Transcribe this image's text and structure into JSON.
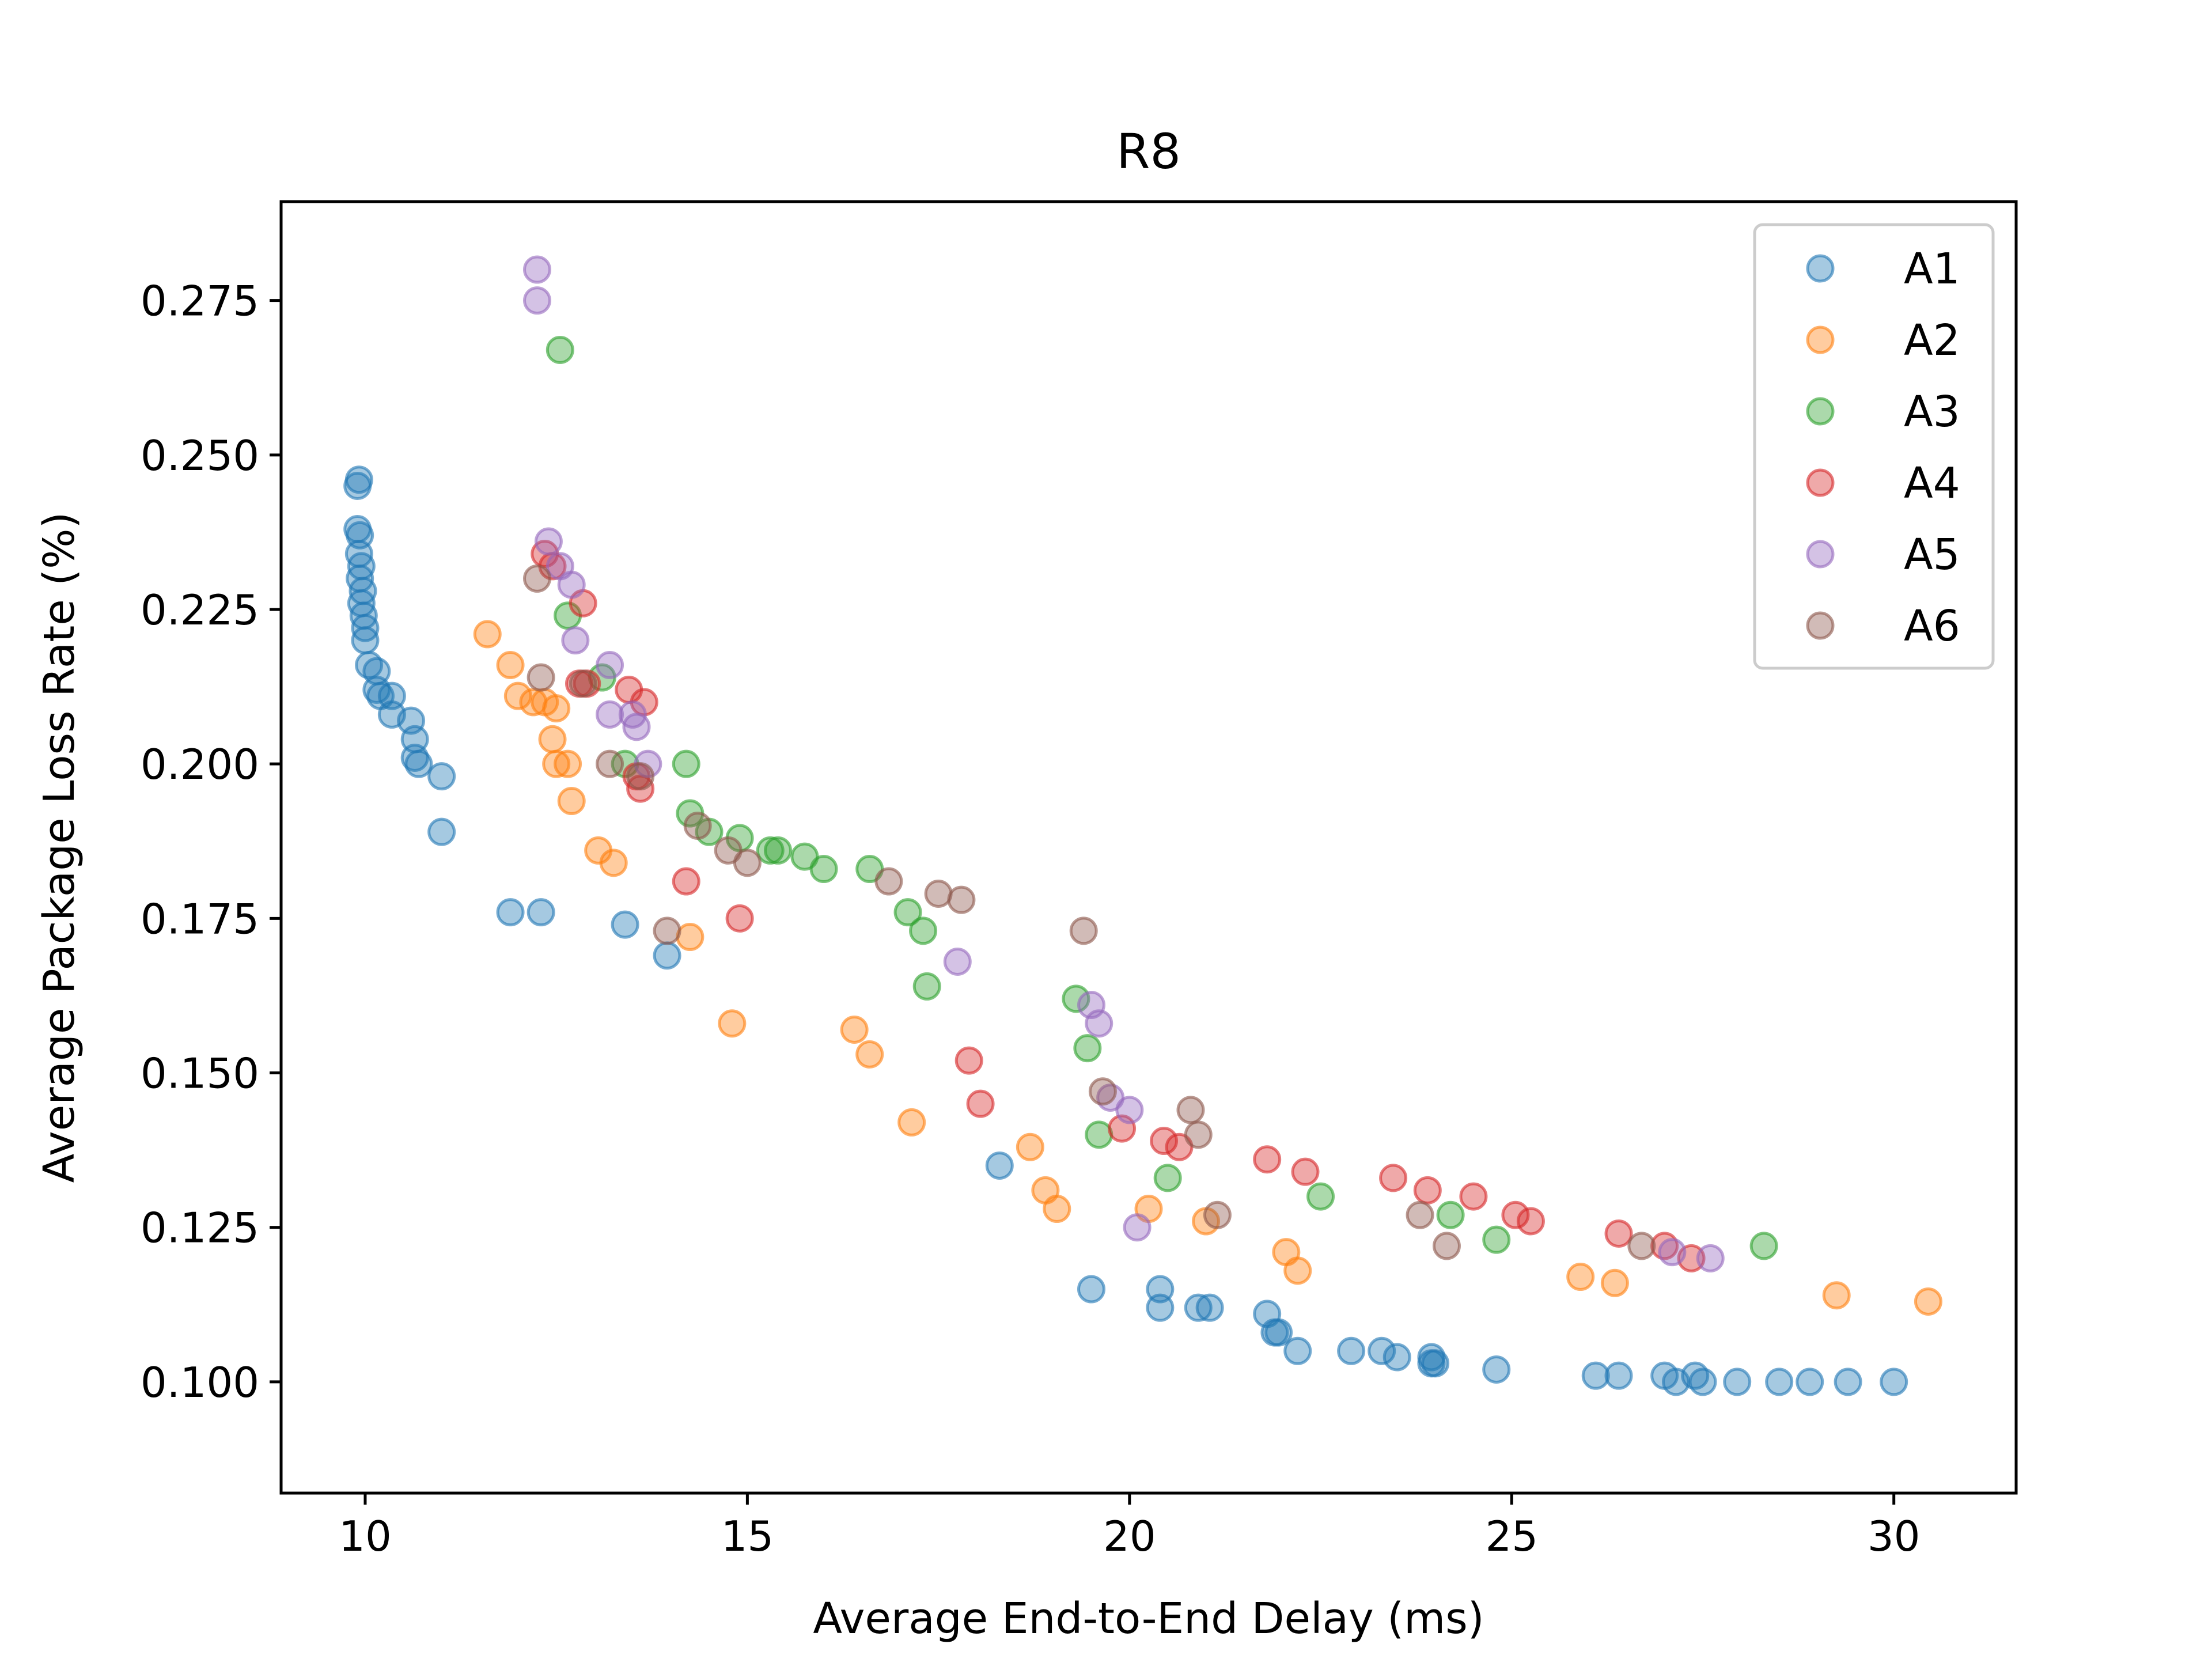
{
  "chart_data": {
    "type": "scatter",
    "title": "R8",
    "xlabel": "Average End-to-End Delay (ms)",
    "ylabel": "Average Package Loss Rate (%)",
    "xlim": [
      8.9,
      31.6
    ],
    "ylim": [
      0.082,
      0.291
    ],
    "xticks": [
      10,
      15,
      20,
      25,
      30
    ],
    "yticks": [
      0.1,
      0.125,
      0.15,
      0.175,
      0.2,
      0.225,
      0.25,
      0.275
    ],
    "xtick_labels": [
      "10",
      "15",
      "20",
      "25",
      "30"
    ],
    "ytick_labels": [
      "0.100",
      "0.125",
      "0.150",
      "0.175",
      "0.200",
      "0.225",
      "0.250",
      "0.275"
    ],
    "grid": false,
    "legend_position": "top-right",
    "series": [
      {
        "name": "A1",
        "color": "#1f77b4",
        "points": [
          [
            9.9,
            0.245
          ],
          [
            9.92,
            0.246
          ],
          [
            9.9,
            0.238
          ],
          [
            9.93,
            0.237
          ],
          [
            9.92,
            0.234
          ],
          [
            9.95,
            0.232
          ],
          [
            9.93,
            0.23
          ],
          [
            9.97,
            0.228
          ],
          [
            9.95,
            0.226
          ],
          [
            9.98,
            0.224
          ],
          [
            10.0,
            0.222
          ],
          [
            10.0,
            0.22
          ],
          [
            10.05,
            0.216
          ],
          [
            10.15,
            0.215
          ],
          [
            10.15,
            0.212
          ],
          [
            10.2,
            0.211
          ],
          [
            10.35,
            0.211
          ],
          [
            10.35,
            0.208
          ],
          [
            10.6,
            0.207
          ],
          [
            10.65,
            0.204
          ],
          [
            10.65,
            0.201
          ],
          [
            10.7,
            0.2
          ],
          [
            11.0,
            0.198
          ],
          [
            11.0,
            0.189
          ],
          [
            11.9,
            0.176
          ],
          [
            12.3,
            0.176
          ],
          [
            13.4,
            0.174
          ],
          [
            13.95,
            0.169
          ],
          [
            18.3,
            0.135
          ],
          [
            19.5,
            0.115
          ],
          [
            20.4,
            0.115
          ],
          [
            20.4,
            0.112
          ],
          [
            20.9,
            0.112
          ],
          [
            21.05,
            0.112
          ],
          [
            21.8,
            0.111
          ],
          [
            21.9,
            0.108
          ],
          [
            21.95,
            0.108
          ],
          [
            22.2,
            0.105
          ],
          [
            22.9,
            0.105
          ],
          [
            23.3,
            0.105
          ],
          [
            23.5,
            0.104
          ],
          [
            23.95,
            0.104
          ],
          [
            23.95,
            0.103
          ],
          [
            24.0,
            0.103
          ],
          [
            24.8,
            0.102
          ],
          [
            26.1,
            0.101
          ],
          [
            26.4,
            0.101
          ],
          [
            27.0,
            0.101
          ],
          [
            27.15,
            0.1
          ],
          [
            27.4,
            0.101
          ],
          [
            27.5,
            0.1
          ],
          [
            27.95,
            0.1
          ],
          [
            28.5,
            0.1
          ],
          [
            28.9,
            0.1
          ],
          [
            29.4,
            0.1
          ],
          [
            30.0,
            0.1
          ]
        ]
      },
      {
        "name": "A2",
        "color": "#ff7f0e",
        "points": [
          [
            11.6,
            0.221
          ],
          [
            11.9,
            0.216
          ],
          [
            12.0,
            0.211
          ],
          [
            12.2,
            0.21
          ],
          [
            12.35,
            0.21
          ],
          [
            12.5,
            0.209
          ],
          [
            12.45,
            0.204
          ],
          [
            12.5,
            0.2
          ],
          [
            12.65,
            0.2
          ],
          [
            12.7,
            0.194
          ],
          [
            13.05,
            0.186
          ],
          [
            13.25,
            0.184
          ],
          [
            14.25,
            0.172
          ],
          [
            14.8,
            0.158
          ],
          [
            16.4,
            0.157
          ],
          [
            16.6,
            0.153
          ],
          [
            17.15,
            0.142
          ],
          [
            18.7,
            0.138
          ],
          [
            18.9,
            0.131
          ],
          [
            19.05,
            0.128
          ],
          [
            20.25,
            0.128
          ],
          [
            21.0,
            0.126
          ],
          [
            22.05,
            0.121
          ],
          [
            22.2,
            0.118
          ],
          [
            25.9,
            0.117
          ],
          [
            26.35,
            0.116
          ],
          [
            29.25,
            0.114
          ],
          [
            30.45,
            0.113
          ]
        ]
      },
      {
        "name": "A3",
        "color": "#2ca02c",
        "points": [
          [
            12.55,
            0.267
          ],
          [
            12.65,
            0.224
          ],
          [
            13.1,
            0.214
          ],
          [
            13.4,
            0.2
          ],
          [
            14.2,
            0.2
          ],
          [
            14.25,
            0.192
          ],
          [
            14.5,
            0.189
          ],
          [
            14.9,
            0.188
          ],
          [
            15.3,
            0.186
          ],
          [
            15.4,
            0.186
          ],
          [
            15.75,
            0.185
          ],
          [
            16.0,
            0.183
          ],
          [
            16.6,
            0.183
          ],
          [
            17.1,
            0.176
          ],
          [
            17.3,
            0.173
          ],
          [
            17.35,
            0.164
          ],
          [
            19.3,
            0.162
          ],
          [
            19.45,
            0.154
          ],
          [
            19.6,
            0.14
          ],
          [
            20.5,
            0.133
          ],
          [
            22.5,
            0.13
          ],
          [
            24.2,
            0.127
          ],
          [
            24.8,
            0.123
          ],
          [
            28.3,
            0.122
          ]
        ]
      },
      {
        "name": "A4",
        "color": "#d62728",
        "points": [
          [
            12.35,
            0.234
          ],
          [
            12.45,
            0.232
          ],
          [
            12.85,
            0.226
          ],
          [
            12.8,
            0.213
          ],
          [
            12.9,
            0.213
          ],
          [
            13.45,
            0.212
          ],
          [
            13.65,
            0.21
          ],
          [
            13.55,
            0.198
          ],
          [
            13.6,
            0.196
          ],
          [
            14.2,
            0.181
          ],
          [
            14.9,
            0.175
          ],
          [
            17.9,
            0.152
          ],
          [
            18.05,
            0.145
          ],
          [
            19.9,
            0.141
          ],
          [
            20.45,
            0.139
          ],
          [
            20.65,
            0.138
          ],
          [
            21.8,
            0.136
          ],
          [
            22.3,
            0.134
          ],
          [
            23.45,
            0.133
          ],
          [
            23.9,
            0.131
          ],
          [
            24.5,
            0.13
          ],
          [
            25.05,
            0.127
          ],
          [
            25.25,
            0.126
          ],
          [
            26.4,
            0.124
          ],
          [
            27.0,
            0.122
          ],
          [
            27.35,
            0.12
          ]
        ]
      },
      {
        "name": "A5",
        "color": "#9467bd",
        "points": [
          [
            12.25,
            0.28
          ],
          [
            12.25,
            0.275
          ],
          [
            12.4,
            0.236
          ],
          [
            12.55,
            0.232
          ],
          [
            12.7,
            0.229
          ],
          [
            12.75,
            0.22
          ],
          [
            13.2,
            0.216
          ],
          [
            13.2,
            0.208
          ],
          [
            13.5,
            0.208
          ],
          [
            13.55,
            0.206
          ],
          [
            13.7,
            0.2
          ],
          [
            17.75,
            0.168
          ],
          [
            19.5,
            0.161
          ],
          [
            19.6,
            0.158
          ],
          [
            19.75,
            0.146
          ],
          [
            20.0,
            0.144
          ],
          [
            20.1,
            0.125
          ],
          [
            27.1,
            0.121
          ],
          [
            27.6,
            0.12
          ]
        ]
      },
      {
        "name": "A6",
        "color": "#8c564b",
        "points": [
          [
            12.25,
            0.23
          ],
          [
            12.3,
            0.214
          ],
          [
            12.85,
            0.213
          ],
          [
            13.2,
            0.2
          ],
          [
            13.6,
            0.198
          ],
          [
            13.95,
            0.173
          ],
          [
            14.35,
            0.19
          ],
          [
            14.75,
            0.186
          ],
          [
            15.0,
            0.184
          ],
          [
            16.85,
            0.181
          ],
          [
            17.5,
            0.179
          ],
          [
            17.8,
            0.178
          ],
          [
            19.4,
            0.173
          ],
          [
            19.65,
            0.147
          ],
          [
            20.8,
            0.144
          ],
          [
            20.9,
            0.14
          ],
          [
            21.15,
            0.127
          ],
          [
            23.8,
            0.127
          ],
          [
            24.15,
            0.122
          ],
          [
            26.7,
            0.122
          ]
        ]
      }
    ]
  }
}
